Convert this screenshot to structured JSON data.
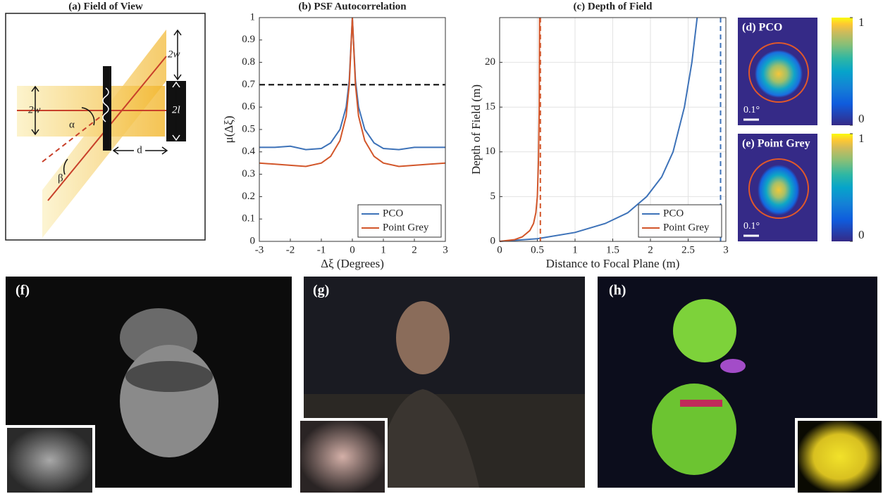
{
  "diagram": {
    "title": "(a) Field of View",
    "width_top": "2w",
    "width_left": "2w",
    "sensor": "2l",
    "alpha": "α",
    "beta": "β",
    "distance": "d"
  },
  "chart_data": [
    {
      "type": "line",
      "title": "(b) PSF Autocorrelation",
      "xlabel": "Δξ (Degrees)",
      "ylabel": "μ(Δξ)",
      "xlim": [
        -3,
        3
      ],
      "xticks": [
        -3,
        -2,
        -1,
        0,
        1,
        2,
        3
      ],
      "ylim": [
        0,
        1
      ],
      "yticks": [
        0,
        0.1,
        0.2,
        0.3,
        0.4,
        0.5,
        0.6,
        0.7,
        0.8,
        0.9,
        1
      ],
      "grid": false,
      "legend": "lower right",
      "reference_line": {
        "y": 0.7,
        "color": "#000000"
      },
      "x": [
        -3,
        -2.5,
        -2,
        -1.5,
        -1,
        -0.7,
        -0.4,
        -0.2,
        -0.1,
        0,
        0.1,
        0.2,
        0.4,
        0.7,
        1,
        1.5,
        2,
        2.5,
        3
      ],
      "series": [
        {
          "name": "PCO",
          "color": "#3d72b8",
          "values": [
            0.42,
            0.42,
            0.425,
            0.41,
            0.415,
            0.44,
            0.5,
            0.6,
            0.72,
            1,
            0.72,
            0.6,
            0.5,
            0.44,
            0.415,
            0.41,
            0.42,
            0.42,
            0.42
          ]
        },
        {
          "name": "Point Grey",
          "color": "#d2562a",
          "values": [
            0.35,
            0.345,
            0.34,
            0.335,
            0.35,
            0.38,
            0.45,
            0.56,
            0.7,
            1,
            0.7,
            0.56,
            0.45,
            0.38,
            0.35,
            0.335,
            0.34,
            0.345,
            0.35
          ]
        }
      ]
    },
    {
      "type": "line",
      "title": "(c) Depth of Field",
      "xlabel": "Distance to Focal Plane (m)",
      "ylabel": "Depth of Field (m)",
      "xlim": [
        0,
        3
      ],
      "xticks": [
        0,
        0.5,
        1,
        1.5,
        2,
        2.5,
        3
      ],
      "ylim": [
        0,
        25
      ],
      "yticks": [
        0,
        5,
        10,
        15,
        20
      ],
      "grid": true,
      "legend": "lower right",
      "series": [
        {
          "name": "PCO",
          "color": "#3d72b8",
          "asymptote": 2.93,
          "x": [
            0,
            0.5,
            1,
            1.4,
            1.7,
            1.95,
            2.15,
            2.3,
            2.45,
            2.55,
            2.62
          ],
          "values": [
            0,
            0.3,
            1,
            2,
            3.2,
            5,
            7.2,
            10,
            15,
            20,
            25
          ]
        },
        {
          "name": "Point Grey",
          "color": "#d2562a",
          "asymptote": 0.54,
          "x": [
            0,
            0.2,
            0.3,
            0.4,
            0.45,
            0.48,
            0.5,
            0.515,
            0.525,
            0.53
          ],
          "values": [
            0,
            0.2,
            0.5,
            1.2,
            2,
            3.2,
            5,
            9,
            15,
            25
          ]
        }
      ]
    }
  ],
  "heatmaps": [
    {
      "label": "(d) PCO",
      "scale": "0.1°",
      "clim": [
        0,
        1
      ],
      "cbar_ticks": [
        0,
        1
      ]
    },
    {
      "label": "(e) Point Grey",
      "scale": "0.1°",
      "clim": [
        0,
        1
      ],
      "cbar_ticks": [
        0,
        1
      ]
    }
  ],
  "photos": [
    {
      "label": "(f)"
    },
    {
      "label": "(g)"
    },
    {
      "label": "(h)"
    }
  ]
}
